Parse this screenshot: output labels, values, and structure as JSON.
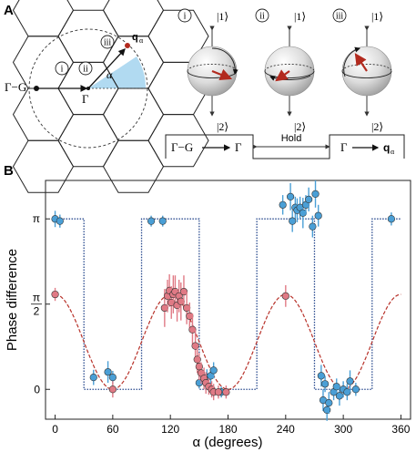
{
  "panel_a": {
    "letter": "A",
    "lattice_labels": {
      "gamma_minus_g": "Γ−G",
      "gamma": "Γ",
      "q_alpha": "q",
      "q_sub": "α",
      "alpha": "α"
    },
    "step_numbers": [
      "i",
      "ii",
      "iii"
    ],
    "spheres": [
      {
        "num": "i",
        "top": "|1⟩",
        "bottom": "|2⟩"
      },
      {
        "num": "ii",
        "top": "|1⟩",
        "bottom": "|2⟩"
      },
      {
        "num": "iii",
        "top": "|1⟩",
        "bottom": "|2⟩"
      }
    ],
    "sequence": {
      "left_from": "Γ−G",
      "left_to": "Γ",
      "hold": "Hold",
      "right_from": "Γ",
      "right_to": "q",
      "right_sub": "α"
    },
    "colors": {
      "arrow": "#b22a1e",
      "wedge": "#a9d6ef"
    }
  },
  "panel_b": {
    "letter": "B"
  },
  "chart_data": {
    "type": "scatter",
    "xlabel": "α (degrees)",
    "ylabel": "Phase difference",
    "xlim": [
      -10,
      370
    ],
    "ylim": [
      -0.55,
      3.85
    ],
    "x_ticks": [
      0,
      60,
      120,
      180,
      240,
      300,
      360
    ],
    "y_ticks": [
      {
        "value": 0,
        "label": "0"
      },
      {
        "value": 1.5708,
        "label": "π/2"
      },
      {
        "value": 3.1416,
        "label": "π"
      }
    ],
    "series": [
      {
        "color": "#4a9fd6",
        "points": [
          [
            0,
            3.14,
            0.15
          ],
          [
            5,
            3.1,
            0.12
          ],
          [
            40,
            0.22,
            0.14
          ],
          [
            55,
            0.32,
            0.2
          ],
          [
            60,
            0.22,
            0.12
          ],
          [
            100,
            3.1,
            0.1
          ],
          [
            112,
            3.1,
            0.1
          ],
          [
            150,
            0.12,
            0.1
          ],
          [
            158,
            0.22,
            0.15
          ],
          [
            162,
            0.25,
            0.15
          ],
          [
            165,
            0.35,
            0.15
          ],
          [
            173,
            -0.05,
            0.1
          ],
          [
            237,
            3.4,
            0.18
          ],
          [
            245,
            3.55,
            0.25
          ],
          [
            247,
            3.1,
            0.2
          ],
          [
            250,
            3.35,
            0.2
          ],
          [
            252,
            3.3,
            0.22
          ],
          [
            255,
            3.35,
            0.2
          ],
          [
            258,
            3.25,
            0.28
          ],
          [
            261,
            3.4,
            0.18
          ],
          [
            264,
            3.5,
            0.22
          ],
          [
            268,
            3.0,
            0.2
          ],
          [
            271,
            3.6,
            0.25
          ],
          [
            274,
            3.2,
            0.2
          ],
          [
            277,
            0.25,
            0.2
          ],
          [
            279,
            -0.2,
            0.2
          ],
          [
            281,
            0.1,
            0.15
          ],
          [
            283,
            -0.38,
            0.2
          ],
          [
            285,
            -0.25,
            0.2
          ],
          [
            290,
            -0.05,
            0.15
          ],
          [
            293,
            0.05,
            0.15
          ],
          [
            296,
            -0.12,
            0.18
          ],
          [
            300,
            0.0,
            0.15
          ],
          [
            304,
            -0.05,
            0.15
          ],
          [
            307,
            0.15,
            0.2
          ],
          [
            313,
            0.0,
            0.12
          ],
          [
            350,
            3.14,
            0.12
          ]
        ]
      },
      {
        "color": "#e07a85",
        "points": [
          [
            0,
            1.75,
            0.12
          ],
          [
            60,
            0.0,
            0.15
          ],
          [
            114,
            1.5,
            0.35
          ],
          [
            117,
            1.72,
            0.3
          ],
          [
            119,
            1.82,
            0.3
          ],
          [
            121,
            1.6,
            0.3
          ],
          [
            123,
            1.75,
            0.35
          ],
          [
            125,
            1.8,
            0.3
          ],
          [
            127,
            1.55,
            0.3
          ],
          [
            129,
            1.72,
            0.3
          ],
          [
            131,
            1.62,
            0.35
          ],
          [
            134,
            1.8,
            0.3
          ],
          [
            137,
            1.5,
            0.3
          ],
          [
            140,
            1.35,
            0.25
          ],
          [
            143,
            1.1,
            0.3
          ],
          [
            146,
            0.8,
            0.3
          ],
          [
            148,
            0.55,
            0.25
          ],
          [
            150,
            0.42,
            0.25
          ],
          [
            152,
            0.3,
            0.2
          ],
          [
            155,
            0.2,
            0.2
          ],
          [
            157,
            0.12,
            0.2
          ],
          [
            160,
            0.05,
            0.15
          ],
          [
            163,
            0.0,
            0.15
          ],
          [
            165,
            -0.05,
            0.15
          ],
          [
            170,
            -0.05,
            0.12
          ],
          [
            178,
            -0.05,
            0.12
          ],
          [
            240,
            1.72,
            0.2
          ]
        ]
      }
    ],
    "model_curves": [
      {
        "style": "dotted step",
        "color": "#2a4b8f",
        "steps": [
          [
            0,
            3.1416
          ],
          [
            30,
            0
          ],
          [
            90,
            3.1416
          ],
          [
            150,
            0
          ],
          [
            210,
            3.1416
          ],
          [
            270,
            0
          ],
          [
            330,
            3.1416
          ],
          [
            360,
            3.1416
          ]
        ]
      },
      {
        "style": "dashed",
        "color": "#b8322a",
        "function": "0.875*(1+cos(3α))"
      }
    ]
  }
}
